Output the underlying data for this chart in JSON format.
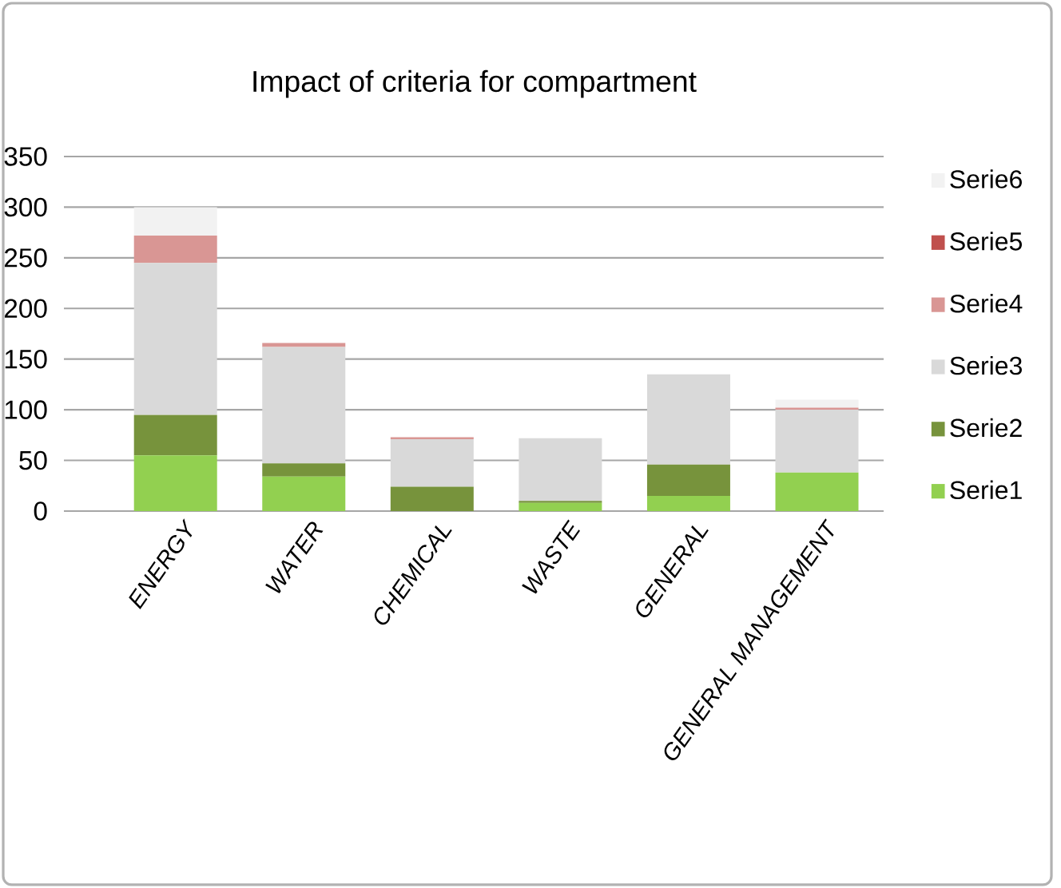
{
  "chart_data": {
    "type": "bar",
    "title": "Impact of criteria for compartment",
    "stacked": true,
    "grid": "y",
    "legend": "right",
    "categories": [
      "ENERGY",
      "WATER",
      "CHEMICAL",
      "WASTE",
      "GENERAL",
      "GENERAL MANAGEMENT"
    ],
    "ylim": [
      0,
      350
    ],
    "yticks": [
      0,
      50,
      100,
      150,
      200,
      250,
      300,
      350
    ],
    "series": [
      {
        "name": "Serie1",
        "color": "#92d050",
        "values": [
          55,
          34,
          0,
          8,
          15,
          38
        ]
      },
      {
        "name": "Serie2",
        "color": "#77933c",
        "values": [
          40,
          13,
          24,
          2,
          31,
          0
        ]
      },
      {
        "name": "Serie3",
        "color": "#d9d9d9",
        "values": [
          150,
          115,
          47,
          62,
          89,
          62
        ]
      },
      {
        "name": "Serie4",
        "color": "#d99694",
        "values": [
          27,
          4,
          2,
          0,
          0,
          2
        ]
      },
      {
        "name": "Serie5",
        "color": "#c0504d",
        "values": [
          0,
          0,
          0,
          0,
          0,
          0
        ]
      },
      {
        "name": "Serie6",
        "color": "#f2f2f2",
        "values": [
          28,
          0,
          0,
          0,
          0,
          8
        ]
      }
    ]
  }
}
